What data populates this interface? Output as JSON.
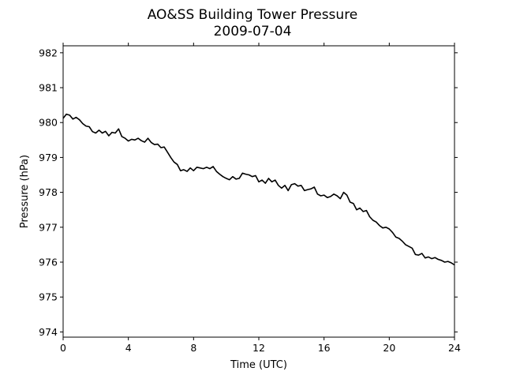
{
  "chart_data": {
    "type": "line",
    "title": "AO&SS Building Tower Pressure",
    "subtitle": "2009-07-04",
    "xlabel": "Time (UTC)",
    "ylabel": "Pressure (hPa)",
    "xlim": [
      0,
      24
    ],
    "ylim": [
      973.85,
      982.2
    ],
    "xticks": [
      0,
      4,
      8,
      12,
      16,
      20,
      24
    ],
    "yticks": [
      974,
      975,
      976,
      977,
      978,
      979,
      980,
      981,
      982
    ],
    "grid": false,
    "series": [
      {
        "color": "#000000",
        "x": [
          0.0,
          0.2,
          0.4,
          0.6,
          0.8,
          1.0,
          1.2,
          1.4,
          1.6,
          1.8,
          2.0,
          2.2,
          2.4,
          2.6,
          2.8,
          3.0,
          3.2,
          3.4,
          3.6,
          3.8,
          4.0,
          4.2,
          4.4,
          4.6,
          4.8,
          5.0,
          5.2,
          5.4,
          5.6,
          5.8,
          6.0,
          6.2,
          6.4,
          6.6,
          6.8,
          7.0,
          7.2,
          7.4,
          7.6,
          7.8,
          8.0,
          8.2,
          8.4,
          8.6,
          8.8,
          9.0,
          9.2,
          9.4,
          9.6,
          9.8,
          10.0,
          10.2,
          10.4,
          10.6,
          10.8,
          11.0,
          11.2,
          11.4,
          11.6,
          11.8,
          12.0,
          12.2,
          12.4,
          12.6,
          12.8,
          13.0,
          13.2,
          13.4,
          13.6,
          13.8,
          14.0,
          14.2,
          14.4,
          14.6,
          14.8,
          15.0,
          15.2,
          15.4,
          15.6,
          15.8,
          16.0,
          16.2,
          16.4,
          16.6,
          16.8,
          17.0,
          17.2,
          17.4,
          17.6,
          17.8,
          18.0,
          18.2,
          18.4,
          18.6,
          18.8,
          19.0,
          19.2,
          19.4,
          19.6,
          19.8,
          20.0,
          20.2,
          20.4,
          20.6,
          20.8,
          21.0,
          21.2,
          21.4,
          21.6,
          21.8,
          22.0,
          22.2,
          22.4,
          22.6,
          22.8,
          23.0,
          23.2,
          23.4,
          23.6,
          23.8,
          24.0
        ],
        "y": [
          980.12,
          980.24,
          980.21,
          980.1,
          980.15,
          980.08,
          979.97,
          979.9,
          979.88,
          979.74,
          979.7,
          979.78,
          979.7,
          979.75,
          979.62,
          979.72,
          979.7,
          979.82,
          979.6,
          979.55,
          979.47,
          979.52,
          979.5,
          979.55,
          979.48,
          979.44,
          979.55,
          979.43,
          979.37,
          979.38,
          979.28,
          979.3,
          979.15,
          979.0,
          978.87,
          978.8,
          978.62,
          978.65,
          978.6,
          978.7,
          978.62,
          978.72,
          978.7,
          978.68,
          978.72,
          978.68,
          978.74,
          978.6,
          978.52,
          978.45,
          978.4,
          978.36,
          978.45,
          978.38,
          978.4,
          978.55,
          978.52,
          978.5,
          978.45,
          978.48,
          978.3,
          978.35,
          978.26,
          978.4,
          978.3,
          978.35,
          978.2,
          978.12,
          978.2,
          978.05,
          978.22,
          978.25,
          978.18,
          978.2,
          978.05,
          978.08,
          978.1,
          978.15,
          977.95,
          977.9,
          977.92,
          977.85,
          977.88,
          977.95,
          977.9,
          977.82,
          978.0,
          977.92,
          977.72,
          977.68,
          977.5,
          977.55,
          977.45,
          977.48,
          977.3,
          977.2,
          977.15,
          977.05,
          976.98,
          977.0,
          976.95,
          976.85,
          976.72,
          976.68,
          976.6,
          976.5,
          976.45,
          976.4,
          976.22,
          976.2,
          976.25,
          976.12,
          976.15,
          976.1,
          976.13,
          976.08,
          976.05,
          976.0,
          976.02,
          975.98,
          975.92
        ]
      }
    ]
  }
}
